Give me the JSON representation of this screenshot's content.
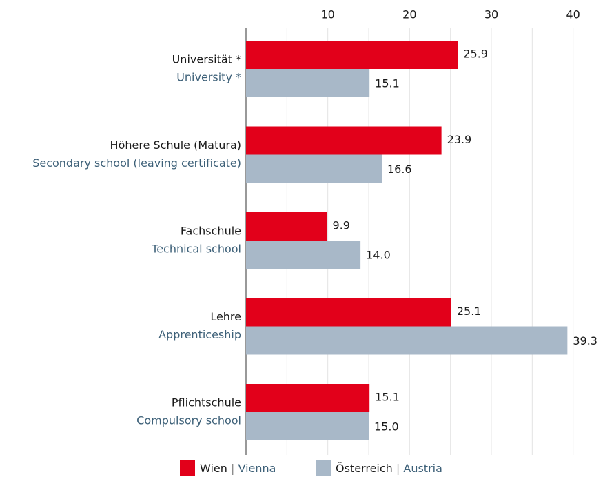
{
  "chart_data": {
    "type": "bar",
    "orientation": "horizontal",
    "categories": [
      "Universität *",
      "Höhere Schule (Matura)",
      "Fachschule",
      "Lehre",
      "Pflichtschule"
    ],
    "categories_en": [
      "University *",
      "Secondary school (leaving certificate)",
      "Technical school",
      "Apprenticeship",
      "Compulsory school"
    ],
    "series": [
      {
        "name": "Wien",
        "name_en": "Vienna",
        "color": "#e2001a",
        "values": [
          25.9,
          23.9,
          9.9,
          25.1,
          15.1
        ],
        "value_labels": [
          "25.9",
          "23.9",
          "9.9",
          "25.1",
          "15.1"
        ]
      },
      {
        "name": "Österreich",
        "name_en": "Austria",
        "color": "#a8b8c8",
        "values": [
          15.1,
          16.6,
          14.0,
          39.3,
          15.0
        ],
        "value_labels": [
          "15.1",
          "16.6",
          "14.0",
          "39.3",
          "15.0"
        ]
      }
    ],
    "legend_separator": "|",
    "xlim": [
      0,
      45
    ],
    "xticks": [
      10,
      20,
      30,
      40
    ],
    "minor_xticks": [
      5,
      15,
      25,
      35
    ],
    "grid": true,
    "legend": "bottom"
  }
}
